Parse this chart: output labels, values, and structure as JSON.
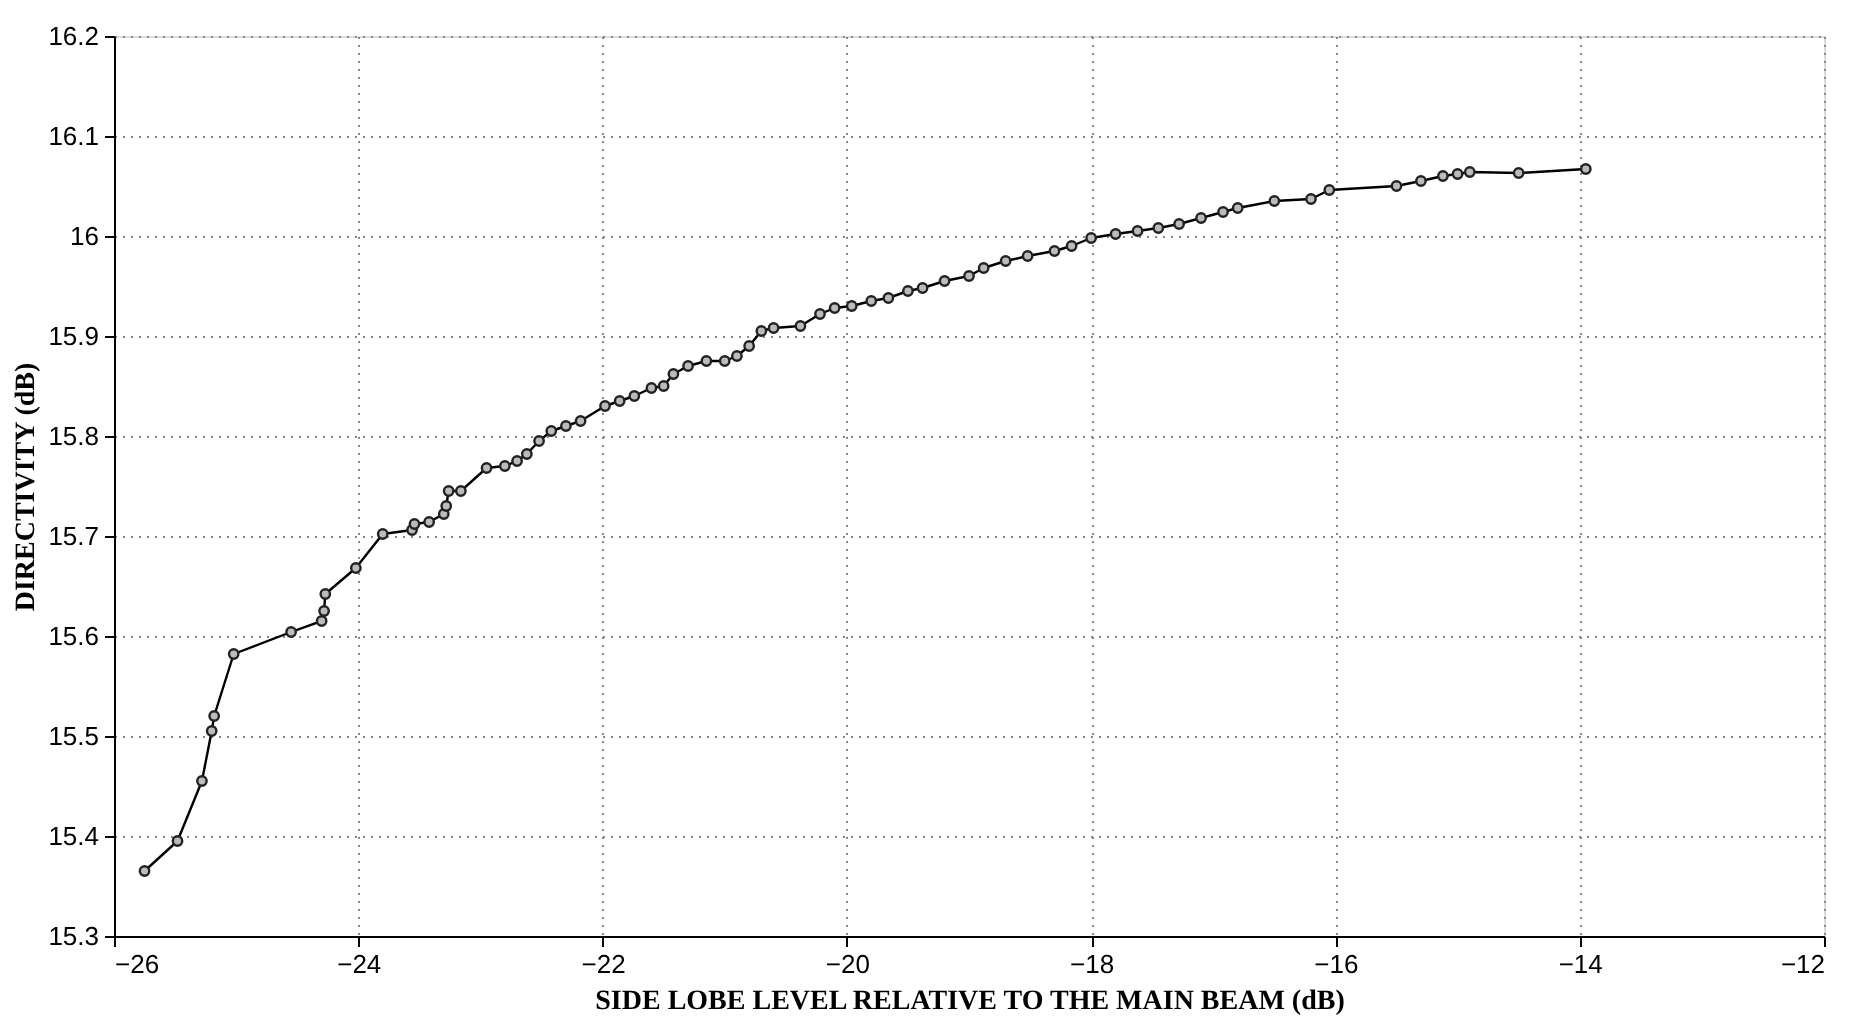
{
  "chart_data": {
    "type": "line",
    "xlabel": "SIDE LOBE LEVEL RELATIVE TO THE MAIN BEAM (dB)",
    "ylabel": "DIRECTIVITY (dB)",
    "xlim": [
      -26,
      -12
    ],
    "xticks": [
      -26,
      -24,
      -22,
      -20,
      -18,
      -16,
      -14,
      -12
    ],
    "ylim": [
      15.3,
      16.2
    ],
    "yticks": [
      15.3,
      15.4,
      15.5,
      15.6,
      15.7,
      15.8,
      15.9,
      16,
      16.1,
      16.2
    ],
    "grid": true,
    "marker": "circle",
    "line_style": "solid",
    "x": [
      -25.75,
      -25.48,
      -25.28,
      -25.2,
      -25.18,
      -25.02,
      -24.55,
      -24.3,
      -24.28,
      -24.27,
      -24.02,
      -23.8,
      -23.56,
      -23.54,
      -23.42,
      -23.3,
      -23.28,
      -23.26,
      -23.16,
      -22.95,
      -22.8,
      -22.7,
      -22.62,
      -22.52,
      -22.42,
      -22.3,
      -22.18,
      -21.98,
      -21.86,
      -21.74,
      -21.6,
      -21.5,
      -21.42,
      -21.3,
      -21.15,
      -21.0,
      -20.9,
      -20.8,
      -20.7,
      -20.6,
      -20.38,
      -20.22,
      -20.1,
      -19.96,
      -19.8,
      -19.66,
      -19.5,
      -19.38,
      -19.2,
      -19.0,
      -18.88,
      -18.7,
      -18.52,
      -18.3,
      -18.16,
      -18.0,
      -17.8,
      -17.62,
      -17.45,
      -17.28,
      -17.1,
      -16.92,
      -16.8,
      -16.5,
      -16.2,
      -16.05,
      -15.5,
      -15.3,
      -15.12,
      -15.0,
      -14.9,
      -14.5,
      -13.95
    ],
    "series": [
      {
        "color": "#000000",
        "values": [
          15.365,
          15.395,
          15.455,
          15.505,
          15.52,
          15.582,
          15.604,
          15.615,
          15.625,
          15.642,
          15.668,
          15.702,
          15.706,
          15.712,
          15.714,
          15.722,
          15.73,
          15.745,
          15.745,
          15.768,
          15.77,
          15.775,
          15.782,
          15.795,
          15.805,
          15.81,
          15.815,
          15.83,
          15.835,
          15.84,
          15.848,
          15.85,
          15.862,
          15.87,
          15.875,
          15.875,
          15.88,
          15.89,
          15.905,
          15.908,
          15.91,
          15.922,
          15.928,
          15.93,
          15.935,
          15.938,
          15.945,
          15.948,
          15.955,
          15.96,
          15.968,
          15.975,
          15.98,
          15.985,
          15.99,
          15.998,
          16.002,
          16.005,
          16.008,
          16.012,
          16.018,
          16.024,
          16.028,
          16.035,
          16.037,
          16.046,
          16.05,
          16.055,
          16.06,
          16.062,
          16.064,
          16.063,
          16.067
        ]
      }
    ]
  }
}
